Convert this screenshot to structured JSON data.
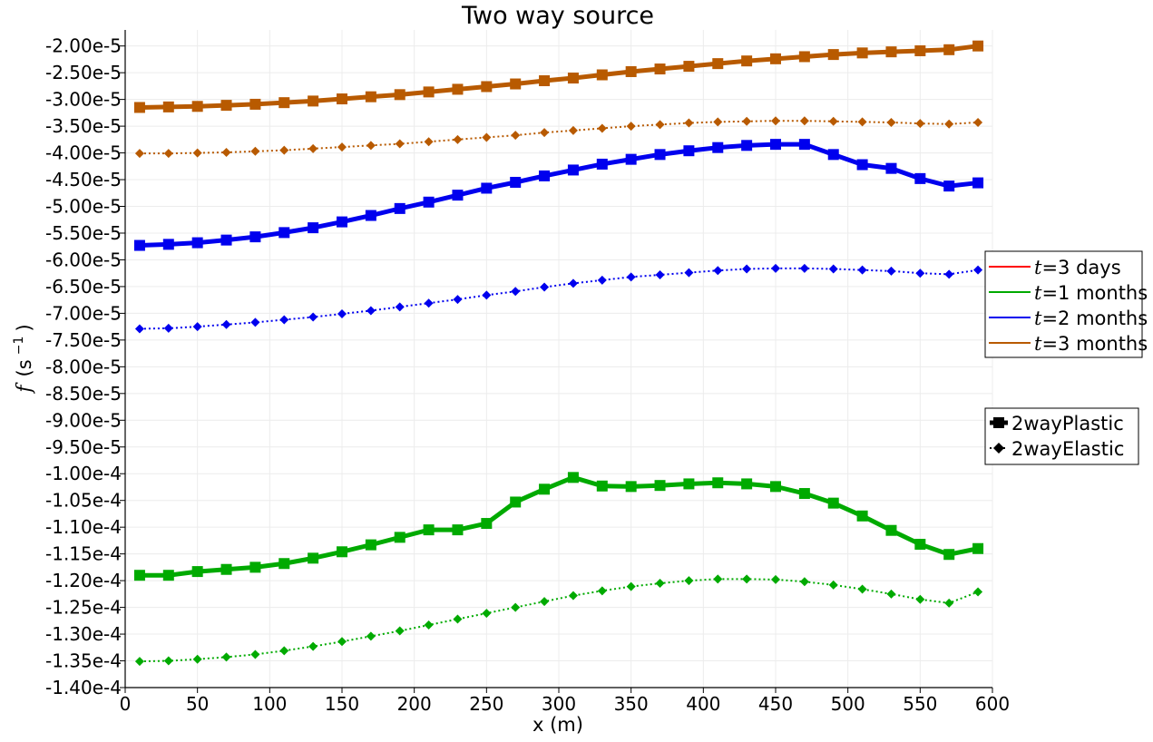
{
  "chart_data": {
    "type": "line",
    "title": "Two way source",
    "xlabel": "x (m)",
    "ylabel_symbol": "f",
    "ylabel_unit": "(s",
    "ylabel_exp": "−1",
    "ylabel_close": ")",
    "xlim": [
      0,
      600
    ],
    "ylim": [
      -0.00014,
      -1.7e-05
    ],
    "xticks": [
      0,
      50,
      100,
      150,
      200,
      250,
      300,
      350,
      400,
      450,
      500,
      550,
      600
    ],
    "yticks": [
      -2e-05,
      -2.5e-05,
      -3e-05,
      -3.5e-05,
      -4e-05,
      -4.5e-05,
      -5e-05,
      -5.5e-05,
      -6e-05,
      -6.5e-05,
      -7e-05,
      -7.5e-05,
      -8e-05,
      -8.5e-05,
      -9e-05,
      -9.5e-05,
      -0.0001,
      -0.000105,
      -0.00011,
      -0.000115,
      -0.00012,
      -0.000125,
      -0.00013,
      -0.000135,
      -0.00014
    ],
    "ytick_labels": [
      "-2.00e-5",
      "-2.50e-5",
      "-3.00e-5",
      "-3.50e-5",
      "-4.00e-5",
      "-4.50e-5",
      "-5.00e-5",
      "-5.50e-5",
      "-6.00e-5",
      "-6.50e-5",
      "-7.00e-5",
      "-7.50e-5",
      "-8.00e-5",
      "-8.50e-5",
      "-9.00e-5",
      "-9.50e-5",
      "-1.00e-4",
      "-1.05e-4",
      "-1.10e-4",
      "-1.15e-4",
      "-1.20e-4",
      "-1.25e-4",
      "-1.30e-4",
      "-1.35e-4",
      "-1.40e-4"
    ],
    "grid": true,
    "x": [
      10,
      30,
      50,
      70,
      90,
      110,
      130,
      150,
      170,
      190,
      210,
      230,
      250,
      270,
      290,
      310,
      330,
      350,
      370,
      390,
      410,
      430,
      450,
      470,
      490,
      510,
      530,
      550,
      570,
      590
    ],
    "series": [
      {
        "name": "t=1 months / 2wayPlastic",
        "time": "t=1 months",
        "material": "2wayPlastic",
        "color": "#00aa00",
        "style": "solid",
        "marker": "square",
        "values": [
          -0.000119,
          -0.000119,
          -0.0001183,
          -0.0001179,
          -0.0001175,
          -0.0001168,
          -0.0001158,
          -0.0001146,
          -0.0001133,
          -0.0001119,
          -0.0001105,
          -0.0001105,
          -0.0001093,
          -0.0001053,
          -0.0001029,
          -0.0001007,
          -0.0001023,
          -0.0001024,
          -0.0001022,
          -0.0001019,
          -0.0001017,
          -0.0001019,
          -0.0001024,
          -0.0001037,
          -0.0001055,
          -0.0001079,
          -0.0001106,
          -0.0001132,
          -0.0001151,
          -0.000114
        ]
      },
      {
        "name": "t=1 months / 2wayElastic",
        "time": "t=1 months",
        "material": "2wayElastic",
        "color": "#00aa00",
        "style": "dotted",
        "marker": "diamond",
        "values": [
          -0.0001351,
          -0.000135,
          -0.0001347,
          -0.0001343,
          -0.0001338,
          -0.0001331,
          -0.0001323,
          -0.0001314,
          -0.0001304,
          -0.0001294,
          -0.0001283,
          -0.0001272,
          -0.0001261,
          -0.000125,
          -0.0001239,
          -0.0001228,
          -0.0001219,
          -0.0001211,
          -0.0001205,
          -0.00012,
          -0.0001197,
          -0.0001197,
          -0.0001198,
          -0.0001202,
          -0.0001208,
          -0.0001216,
          -0.0001225,
          -0.0001235,
          -0.0001242,
          -0.0001221
        ]
      },
      {
        "name": "t=2 months / 2wayPlastic",
        "time": "t=2 months",
        "material": "2wayPlastic",
        "color": "#0000ee",
        "style": "solid",
        "marker": "square",
        "values": [
          -5.73e-05,
          -5.71e-05,
          -5.68e-05,
          -5.63e-05,
          -5.57e-05,
          -5.49e-05,
          -5.4e-05,
          -5.29e-05,
          -5.17e-05,
          -5.04e-05,
          -4.92e-05,
          -4.79e-05,
          -4.66e-05,
          -4.55e-05,
          -4.43e-05,
          -4.32e-05,
          -4.21e-05,
          -4.12e-05,
          -4.03e-05,
          -3.96e-05,
          -3.9e-05,
          -3.86e-05,
          -3.84e-05,
          -3.84e-05,
          -4.03e-05,
          -4.22e-05,
          -4.29e-05,
          -4.48e-05,
          -4.62e-05,
          -4.56e-05
        ]
      },
      {
        "name": "t=2 months / 2wayElastic",
        "time": "t=2 months",
        "material": "2wayElastic",
        "color": "#0000ee",
        "style": "dotted",
        "marker": "diamond",
        "values": [
          -7.29e-05,
          -7.28e-05,
          -7.25e-05,
          -7.21e-05,
          -7.17e-05,
          -7.12e-05,
          -7.07e-05,
          -7.01e-05,
          -6.95e-05,
          -6.88e-05,
          -6.81e-05,
          -6.74e-05,
          -6.66e-05,
          -6.59e-05,
          -6.51e-05,
          -6.44e-05,
          -6.38e-05,
          -6.32e-05,
          -6.28e-05,
          -6.24e-05,
          -6.2e-05,
          -6.17e-05,
          -6.16e-05,
          -6.16e-05,
          -6.17e-05,
          -6.19e-05,
          -6.21e-05,
          -6.25e-05,
          -6.27e-05,
          -6.19e-05
        ]
      },
      {
        "name": "t=3 months / 2wayPlastic",
        "time": "t=3 months",
        "material": "2wayPlastic",
        "color": "#b85a00",
        "style": "solid",
        "marker": "square",
        "values": [
          -3.15e-05,
          -3.14e-05,
          -3.13e-05,
          -3.11e-05,
          -3.09e-05,
          -3.06e-05,
          -3.03e-05,
          -2.99e-05,
          -2.95e-05,
          -2.91e-05,
          -2.86e-05,
          -2.81e-05,
          -2.76e-05,
          -2.71e-05,
          -2.65e-05,
          -2.6e-05,
          -2.54e-05,
          -2.48e-05,
          -2.43e-05,
          -2.38e-05,
          -2.33e-05,
          -2.28e-05,
          -2.24e-05,
          -2.2e-05,
          -2.16e-05,
          -2.13e-05,
          -2.11e-05,
          -2.09e-05,
          -2.07e-05,
          -2e-05
        ]
      },
      {
        "name": "t=3 months / 2wayElastic",
        "time": "t=3 months",
        "material": "2wayElastic",
        "color": "#b85a00",
        "style": "dotted",
        "marker": "diamond",
        "values": [
          -4.01e-05,
          -4.01e-05,
          -4e-05,
          -3.99e-05,
          -3.97e-05,
          -3.95e-05,
          -3.92e-05,
          -3.89e-05,
          -3.86e-05,
          -3.83e-05,
          -3.79e-05,
          -3.75e-05,
          -3.71e-05,
          -3.67e-05,
          -3.62e-05,
          -3.58e-05,
          -3.54e-05,
          -3.5e-05,
          -3.47e-05,
          -3.44e-05,
          -3.42e-05,
          -3.41e-05,
          -3.4e-05,
          -3.4e-05,
          -3.41e-05,
          -3.42e-05,
          -3.43e-05,
          -3.45e-05,
          -3.46e-05,
          -3.43e-05
        ]
      }
    ],
    "legend_color": {
      "placement": "right",
      "entries": [
        {
          "math": "t",
          "label": "=3 days",
          "color": "#ff0000"
        },
        {
          "math": "t",
          "label": "=1 months",
          "color": "#00aa00"
        },
        {
          "math": "t",
          "label": "=2 months",
          "color": "#0000ee"
        },
        {
          "math": "t",
          "label": "=3 months",
          "color": "#b85a00"
        }
      ]
    },
    "legend_style": {
      "placement": "right",
      "entries": [
        {
          "label": "2wayPlastic",
          "style": "solid",
          "marker": "square"
        },
        {
          "label": "2wayElastic",
          "style": "dotted",
          "marker": "diamond"
        }
      ]
    }
  }
}
